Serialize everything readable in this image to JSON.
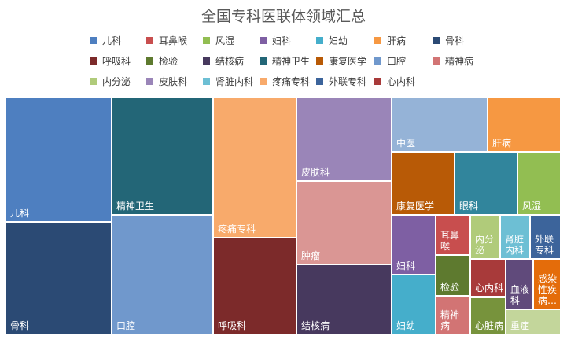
{
  "chart_data": {
    "type": "treemap",
    "title": "全国专科医联体领域汇总",
    "legend_position": "top",
    "legend": [
      {
        "name": "儿科",
        "color": "#4E7FC0"
      },
      {
        "name": "耳鼻喉",
        "color": "#C84E4E"
      },
      {
        "name": "风湿",
        "color": "#92BE52"
      },
      {
        "name": "妇科",
        "color": "#7E5FA3"
      },
      {
        "name": "妇幼",
        "color": "#45AECB"
      },
      {
        "name": "肝病",
        "color": "#F69842"
      },
      {
        "name": "骨科",
        "color": "#2B4A74"
      },
      {
        "name": "呼吸科",
        "color": "#7C2A2A"
      },
      {
        "name": "检验",
        "color": "#5E7A2F"
      },
      {
        "name": "结核病",
        "color": "#47395E"
      },
      {
        "name": "精神卫生",
        "color": "#236677"
      },
      {
        "name": "康复医学",
        "color": "#B85A06"
      },
      {
        "name": "口腔",
        "color": "#7098CC"
      },
      {
        "name": "精神病",
        "color": "#D27474"
      },
      {
        "name": "内分泌",
        "color": "#B0CB7A"
      },
      {
        "name": "皮肤科",
        "color": "#9A85B8"
      },
      {
        "name": "肾脏内科",
        "color": "#6DBFD4"
      },
      {
        "name": "疼痛专科",
        "color": "#F8AA6B"
      },
      {
        "name": "外联专科",
        "color": "#3C649B"
      },
      {
        "name": "心内科",
        "color": "#A83A3A"
      }
    ],
    "cells": [
      {
        "name": "儿科",
        "color": "#4E7FC0"
      },
      {
        "name": "骨科",
        "color": "#2B4A74"
      },
      {
        "name": "精神卫生",
        "color": "#236677"
      },
      {
        "name": "口腔",
        "color": "#7098CC"
      },
      {
        "name": "疼痛专科",
        "color": "#F8AA6B"
      },
      {
        "name": "呼吸科",
        "color": "#7C2A2A"
      },
      {
        "name": "皮肤科",
        "color": "#9A85B8"
      },
      {
        "name": "肿瘤",
        "color": "#DA9694"
      },
      {
        "name": "结核病",
        "color": "#47395E"
      },
      {
        "name": "中医",
        "color": "#95B3D7"
      },
      {
        "name": "肝病",
        "color": "#F69842"
      },
      {
        "name": "康复医学",
        "color": "#B85A06"
      },
      {
        "name": "眼科",
        "color": "#31859C"
      },
      {
        "name": "风湿",
        "color": "#92BE52"
      },
      {
        "name": "妇科",
        "color": "#7E5FA3"
      },
      {
        "name": "妇幼",
        "color": "#45AECB"
      },
      {
        "name": "耳鼻喉",
        "color": "#C84E4E"
      },
      {
        "name": "检验",
        "color": "#5E7A2F"
      },
      {
        "name": "精神病",
        "color": "#D27474"
      },
      {
        "name": "内分泌",
        "color": "#B0CB7A"
      },
      {
        "name": "肾脏内科",
        "color": "#6DBFD4"
      },
      {
        "name": "外联专科",
        "color": "#3C649B"
      },
      {
        "name": "心内科",
        "color": "#A83A3A"
      },
      {
        "name": "血液科",
        "color": "#604A7B"
      },
      {
        "name": "感染性疾病…",
        "color": "#E46C0A"
      },
      {
        "name": "心脏病",
        "color": "#77933C"
      },
      {
        "name": "重症",
        "color": "#C3D69B"
      }
    ]
  }
}
